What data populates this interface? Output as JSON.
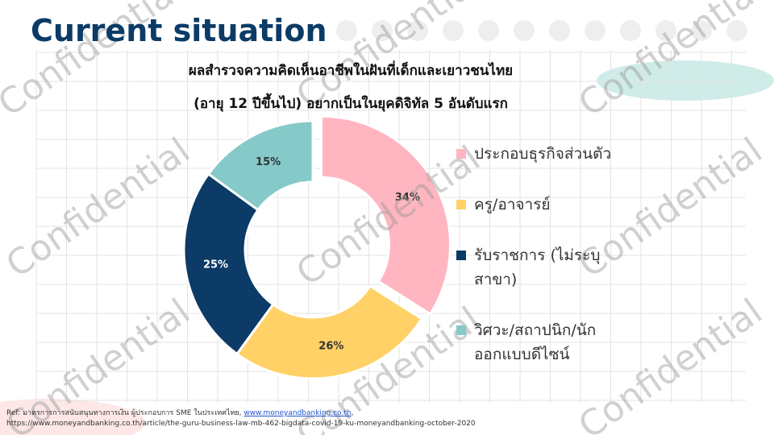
{
  "header": {
    "title": "Current situation"
  },
  "watermark": "Confidential",
  "chart_data": {
    "type": "pie",
    "title": "ผลสำรวจความคิดเห็นอาชีพในฝันที่เด็กและเยาวชนไทย",
    "subtitle": "(อายุ 12 ปีขึ้นไป) อยากเป็นในยุคดิจิทัล 5 อันดับแรก",
    "categories": [
      "ประกอบธุรกิจส่วนตัว",
      "ครู/อาจารย์",
      "รับราชการ (ไม่ระบุสาขา)",
      "วิศวะ/สถาปนิก/นักออกแบบดีไซน์"
    ],
    "values": [
      34,
      26,
      25,
      15
    ],
    "value_labels": [
      "34%",
      "26%",
      "25%",
      "15%"
    ],
    "colors": [
      "#ffb6c1",
      "#ffd166",
      "#0b3b66",
      "#86c9c9"
    ],
    "donut": true
  },
  "footer": {
    "ref_text": "Ref: มาตรการการสนับสนุนทางการเงิน ผู้ประกอบการ SME ในประเทศไทย,",
    "ref_link": "www.moneyandbanking.co.th",
    "ref_end": ",",
    "url": "https://www.moneyandbanking.co.th/article/the-guru-business-law-mb-462-bigdata-covid-19-ku-moneyandbanking-october-2020"
  }
}
